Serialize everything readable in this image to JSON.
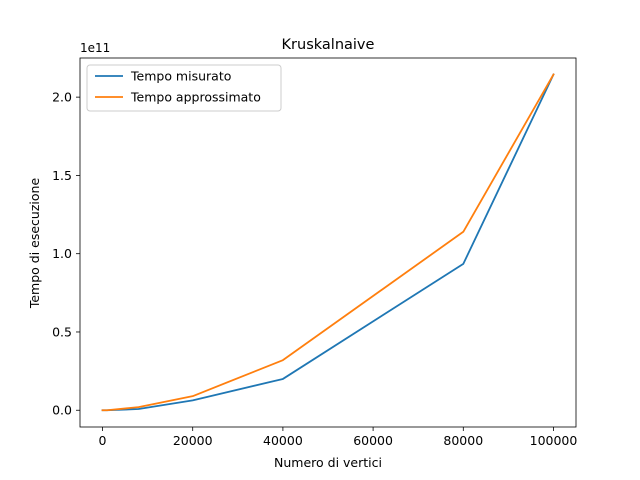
{
  "chart_data": {
    "type": "line",
    "title": "Kruskalnaive",
    "xlabel": "Numero di vertici",
    "ylabel": "Tempo di esecuzione",
    "y_offset_label": "1e11",
    "y_scale_factor": 100000000000,
    "xlim": [
      -4990,
      104990
    ],
    "ylim": [
      -0.107,
      2.25
    ],
    "x_ticks": [
      0,
      20000,
      40000,
      60000,
      80000,
      100000
    ],
    "x_tick_labels": [
      "0",
      "20000",
      "40000",
      "60000",
      "80000",
      "100000"
    ],
    "y_ticks": [
      0.0,
      0.5,
      1.0,
      1.5,
      2.0
    ],
    "y_tick_labels": [
      "0.0",
      "0.5",
      "1.0",
      "1.5",
      "2.0"
    ],
    "grid": false,
    "legend_position": "upper-left",
    "series": [
      {
        "name": "Tempo misurato",
        "color": "#1f77b4",
        "x": [
          10,
          100,
          1000,
          8000,
          20000,
          40000,
          80000,
          100000
        ],
        "y": [
          0.0,
          0.0,
          0.0,
          0.008,
          0.063,
          0.2,
          0.935,
          2.145
        ]
      },
      {
        "name": "Tempo approssimato",
        "color": "#ff7f0e",
        "x": [
          10,
          100,
          1000,
          8000,
          20000,
          40000,
          80000,
          100000
        ],
        "y": [
          0.0,
          0.0,
          0.0,
          0.02,
          0.09,
          0.32,
          1.14,
          2.145
        ]
      }
    ]
  }
}
